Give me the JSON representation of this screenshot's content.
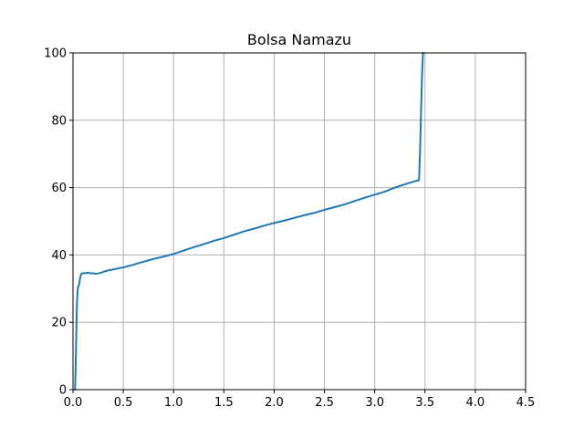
{
  "chart_data": {
    "type": "line",
    "title": "Bolsa Namazu",
    "xlabel": "",
    "ylabel": "",
    "xlim": [
      0.0,
      4.5
    ],
    "ylim": [
      0,
      100
    ],
    "xticks": [
      0.0,
      0.5,
      1.0,
      1.5,
      2.0,
      2.5,
      3.0,
      3.5,
      4.0,
      4.5
    ],
    "xtick_labels": [
      "0.0",
      "0.5",
      "1.0",
      "1.5",
      "2.0",
      "2.5",
      "3.0",
      "3.5",
      "4.0",
      "4.5"
    ],
    "yticks": [
      0,
      20,
      40,
      60,
      80,
      100
    ],
    "ytick_labels": [
      "0",
      "20",
      "40",
      "60",
      "80",
      "100"
    ],
    "grid": true,
    "line_color": "#1f77b4",
    "grid_color": "#b0b0b0",
    "series": [
      {
        "x": [
          0.02,
          0.025,
          0.03,
          0.035,
          0.04,
          0.045,
          0.05,
          0.06,
          0.07,
          0.08,
          0.09,
          0.1,
          0.12,
          0.15,
          0.18,
          0.2,
          0.22,
          0.25,
          0.28,
          0.3,
          0.35,
          0.4,
          0.45,
          0.5,
          0.6,
          0.7,
          0.8,
          0.9,
          1.0,
          1.1,
          1.2,
          1.3,
          1.4,
          1.5,
          1.6,
          1.7,
          1.8,
          1.9,
          2.0,
          2.1,
          2.2,
          2.3,
          2.4,
          2.5,
          2.6,
          2.7,
          2.8,
          2.9,
          3.0,
          3.1,
          3.2,
          3.3,
          3.4,
          3.44,
          3.45,
          3.46,
          3.47,
          3.48
        ],
        "y": [
          0,
          5,
          12,
          20,
          26,
          29,
          30.5,
          31,
          33,
          34.3,
          34.5,
          34.6,
          34.6,
          34.7,
          34.5,
          34.6,
          34.4,
          34.5,
          34.7,
          35.0,
          35.4,
          35.7,
          36.0,
          36.3,
          37.1,
          38.0,
          38.8,
          39.5,
          40.3,
          41.3,
          42.3,
          43.2,
          44.2,
          45.0,
          46.0,
          47.0,
          47.8,
          48.7,
          49.5,
          50.2,
          51.0,
          51.8,
          52.5,
          53.4,
          54.2,
          55.0,
          56.0,
          57.0,
          57.9,
          58.8,
          60.0,
          61.0,
          61.9,
          62.2,
          70,
          82,
          93,
          100
        ]
      }
    ]
  }
}
